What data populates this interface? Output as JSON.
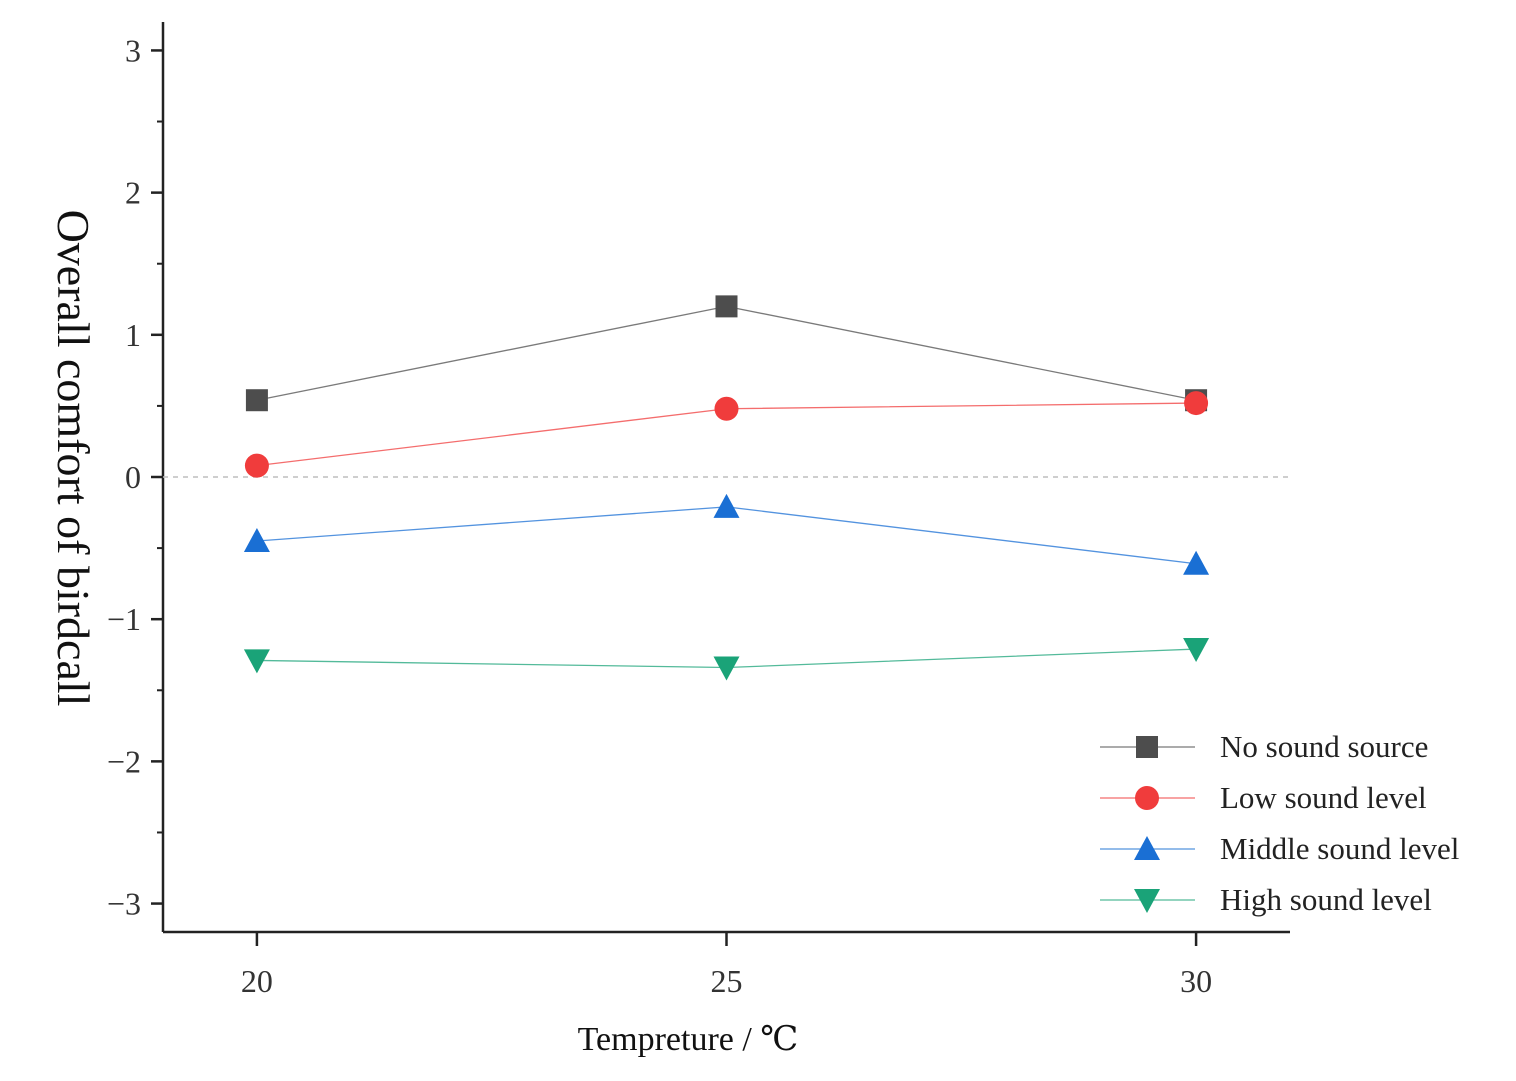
{
  "chart_data": {
    "type": "line",
    "title": "",
    "xlabel": "Tempreture / ℃",
    "ylabel": "Overall comfort of birdcall",
    "x": [
      20,
      25,
      30
    ],
    "x_tick_labels": [
      "20",
      "25",
      "30"
    ],
    "xlim": [
      19,
      31
    ],
    "ylim": [
      -3.2,
      3.2
    ],
    "y_ticks": [
      3,
      2,
      1,
      0,
      -1,
      -2,
      -3
    ],
    "y_tick_labels": [
      "3",
      "2",
      "1",
      "0",
      "−1",
      "−2",
      "−3"
    ],
    "reference_line": {
      "y": 0,
      "style": "dashed"
    },
    "grid": false,
    "legend_position": "bottom-right",
    "series": [
      {
        "name": "No sound source",
        "values": [
          0.54,
          1.2,
          0.54
        ],
        "color": "#4d4d4d",
        "marker": "square"
      },
      {
        "name": "Low sound level",
        "values": [
          0.08,
          0.48,
          0.52
        ],
        "color": "#f03c3c",
        "marker": "circle"
      },
      {
        "name": "Middle sound level",
        "values": [
          -0.45,
          -0.21,
          -0.61
        ],
        "color": "#1a6fd4",
        "marker": "triangle-up"
      },
      {
        "name": "High sound level",
        "values": [
          -1.29,
          -1.34,
          -1.21
        ],
        "color": "#1aa378",
        "marker": "triangle-down"
      }
    ]
  }
}
